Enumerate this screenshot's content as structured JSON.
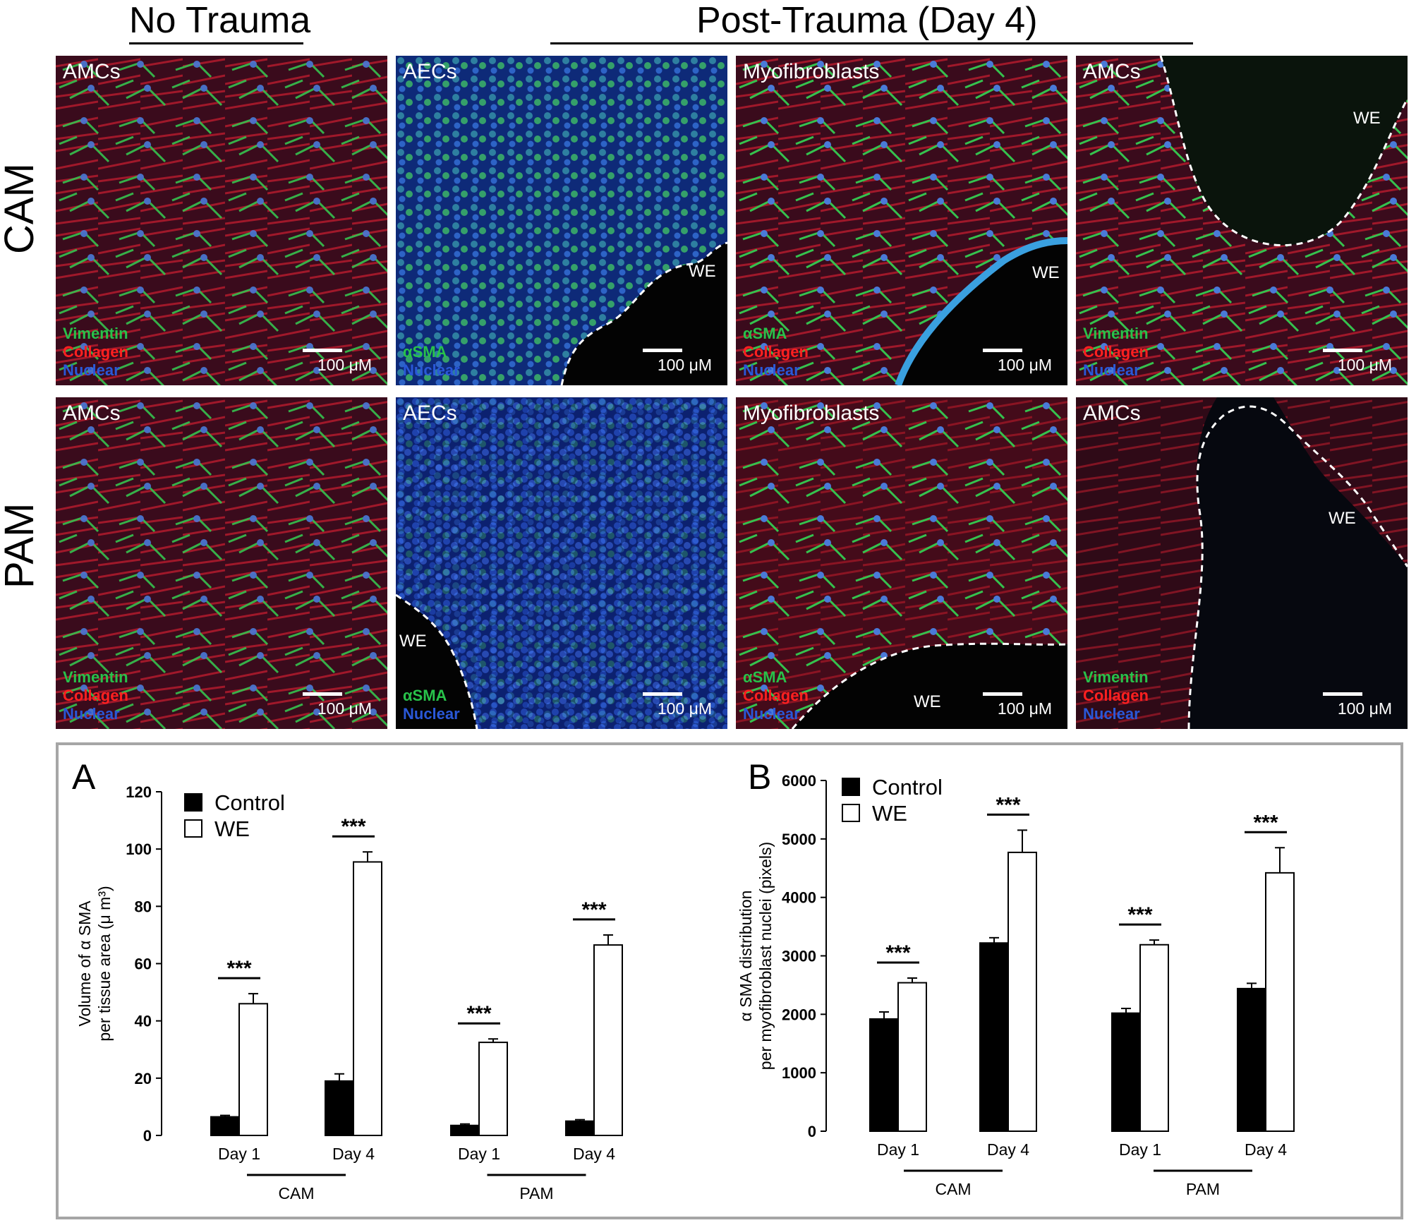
{
  "header": {
    "no_trauma": "No Trauma",
    "post_trauma": "Post-Trauma (Day 4)"
  },
  "rows": {
    "cam": "CAM",
    "pam": "PAM"
  },
  "panels": {
    "cam": [
      {
        "title": "AMCs",
        "stains": [
          "Vimentin",
          "Collagen",
          "Nuclear"
        ],
        "scale": "100 μM"
      },
      {
        "title": "AECs",
        "stains": [
          "αSMA",
          "Nuclear"
        ],
        "scale": "100 μM",
        "we": "WE"
      },
      {
        "title": "Myofibroblasts",
        "stains": [
          "αSMA",
          "Collagen",
          "Nuclear"
        ],
        "scale": "100 μM",
        "we": "WE"
      },
      {
        "title": "AMCs",
        "stains": [
          "Vimentin",
          "Collagen",
          "Nuclear"
        ],
        "scale": "100 μM",
        "we": "WE"
      }
    ],
    "pam": [
      {
        "title": "AMCs",
        "stains": [
          "Vimentin",
          "Collagen",
          "Nuclear"
        ],
        "scale": "100 μM"
      },
      {
        "title": "AECs",
        "stains": [
          "αSMA",
          "Nuclear"
        ],
        "scale": "100 μM",
        "we": "WE"
      },
      {
        "title": "Myofibroblasts",
        "stains": [
          "αSMA",
          "Collagen",
          "Nuclear"
        ],
        "scale": "100 μM",
        "we": "WE"
      },
      {
        "title": "AMCs",
        "stains": [
          "Vimentin",
          "Collagen",
          "Nuclear"
        ],
        "scale": "100 μM",
        "we": "WE"
      }
    ]
  },
  "colors": {
    "vimentin_green": "#28c24a",
    "collagen_red": "#ff2020",
    "nuclear_blue": "#2a58d8",
    "frame_gray": "#a6a6a6"
  },
  "chart_data": [
    {
      "panel_label": "A",
      "type": "bar",
      "ylabel": [
        "Volume of α SMA",
        "per tissue area (μ m³)"
      ],
      "ylim": [
        0,
        120
      ],
      "yticks": [
        0,
        20,
        40,
        60,
        80,
        100,
        120
      ],
      "categories": [
        "Day 1",
        "Day 4",
        "Day 1",
        "Day 4"
      ],
      "groups": [
        {
          "label": "CAM",
          "categories": [
            0,
            1
          ]
        },
        {
          "label": "PAM",
          "categories": [
            2,
            3
          ]
        }
      ],
      "series": [
        {
          "name": "Control",
          "fill": "#000000",
          "values": [
            6.5,
            19,
            3.5,
            5
          ],
          "errors": [
            0.5,
            2.5,
            0.5,
            0.5
          ]
        },
        {
          "name": "WE",
          "fill": "#ffffff",
          "values": [
            46,
            95.5,
            32.5,
            66.5
          ],
          "errors": [
            3.5,
            3.5,
            1.2,
            3.5
          ]
        }
      ],
      "significance": [
        "***",
        "***",
        "***",
        "***"
      ],
      "legend": "top-left"
    },
    {
      "panel_label": "B",
      "type": "bar",
      "ylabel": [
        "α SMA distribution",
        "per myofibroblast nuclei (pixels)"
      ],
      "ylim": [
        0,
        6000
      ],
      "yticks": [
        0,
        1000,
        2000,
        3000,
        4000,
        5000,
        6000
      ],
      "categories": [
        "Day 1",
        "Day 4",
        "Day 1",
        "Day 4"
      ],
      "groups": [
        {
          "label": "CAM",
          "categories": [
            0,
            1
          ]
        },
        {
          "label": "PAM",
          "categories": [
            2,
            3
          ]
        }
      ],
      "series": [
        {
          "name": "Control",
          "fill": "#000000",
          "values": [
            1920,
            3220,
            2020,
            2440
          ],
          "errors": [
            120,
            90,
            80,
            90
          ]
        },
        {
          "name": "WE",
          "fill": "#ffffff",
          "values": [
            2540,
            4770,
            3190,
            4420
          ],
          "errors": [
            80,
            380,
            80,
            430
          ]
        }
      ],
      "significance": [
        "***",
        "***",
        "***",
        "***"
      ],
      "legend": "top-left"
    }
  ]
}
